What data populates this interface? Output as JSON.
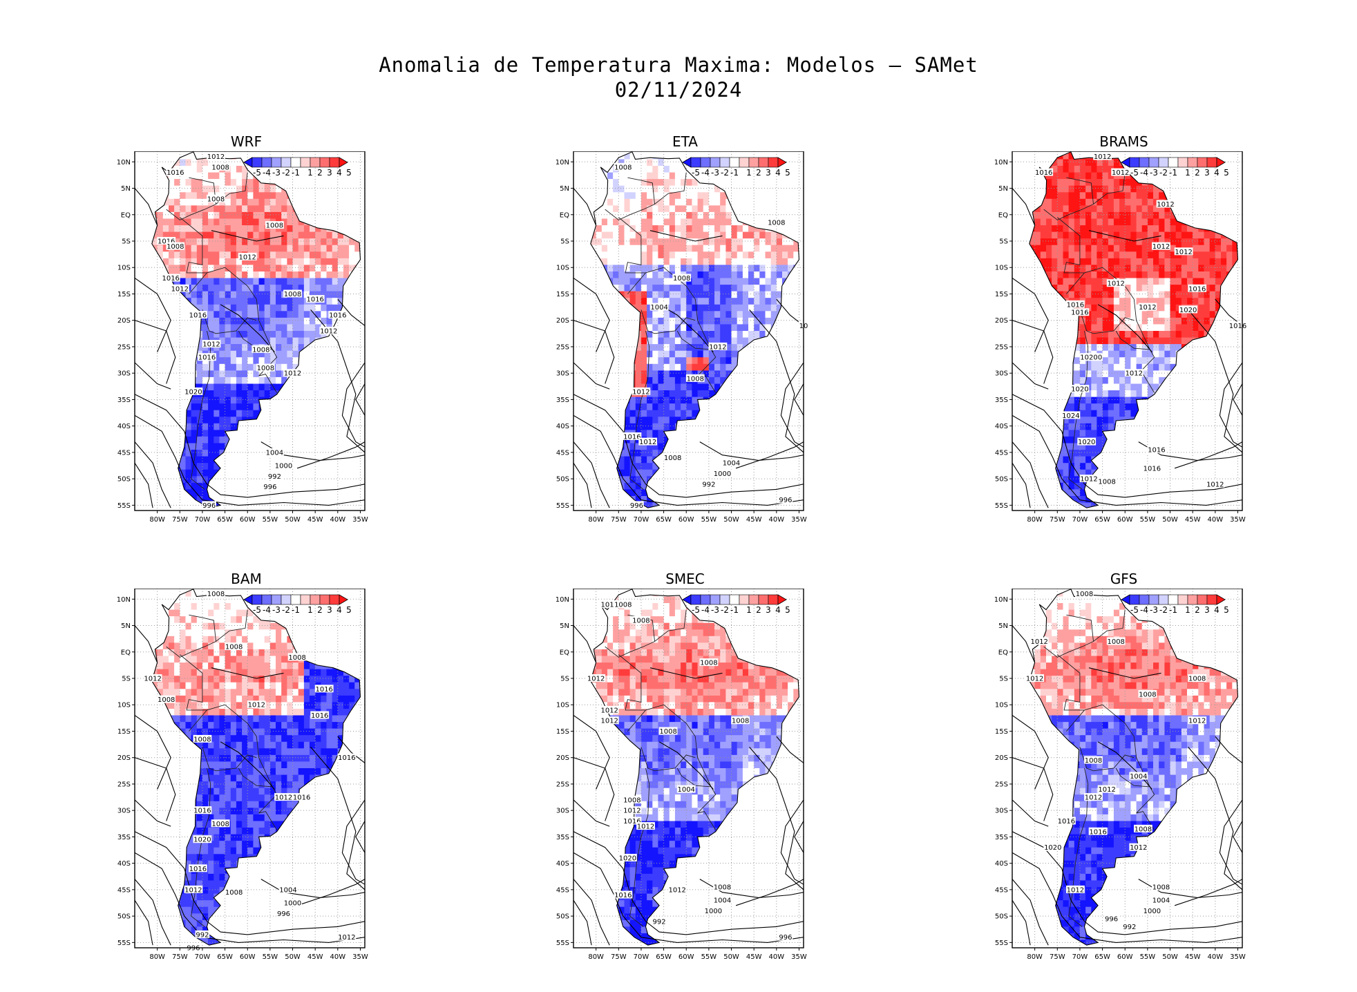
{
  "title": {
    "line1": "Anomalia de Temperatura Maxima: Modelos — SAMet",
    "line2": "02/11/2024"
  },
  "axes": {
    "lat_labels": [
      "10N",
      "5N",
      "EQ",
      "5S",
      "10S",
      "15S",
      "20S",
      "25S",
      "30S",
      "35S",
      "40S",
      "45S",
      "50S",
      "55S"
    ],
    "lon_labels": [
      "80W",
      "75W",
      "70W",
      "65W",
      "60W",
      "55W",
      "50W",
      "45W",
      "40W",
      "35W"
    ],
    "lat_range": [
      -56,
      12
    ],
    "lon_range": [
      -85,
      -34
    ]
  },
  "colorbar": {
    "labels": [
      "-5",
      "-4",
      "-3",
      "-2",
      "-1",
      "1",
      "2",
      "3",
      "4",
      "5"
    ],
    "colors": [
      "#1414ff",
      "#3c3cff",
      "#6e6eff",
      "#a0a0ff",
      "#d2d2ff",
      "#ffffff",
      "#ffd2d2",
      "#ffa0a0",
      "#ff6e6e",
      "#ff3c3c",
      "#ff1414"
    ]
  },
  "panels": [
    {
      "name": "WRF",
      "pattern": "warm-north",
      "isobars": [
        "1012",
        "1008",
        "1016",
        "1008",
        "1008",
        "1016",
        "1008",
        "1012",
        "1016",
        "1012",
        "1008",
        "1016",
        "1016",
        "1012",
        "1016",
        "1008",
        "1012",
        "1016",
        "1020",
        "1012",
        "1008",
        "1004",
        "1000",
        "992",
        "996",
        "996"
      ]
    },
    {
      "name": "ETA",
      "pattern": "mixed",
      "isobars": [
        "1008",
        "1008",
        "1008",
        "1004",
        "1012",
        "1008",
        "1012",
        "1016",
        "1012",
        "1008",
        "1004",
        "1000",
        "992",
        "996",
        "996",
        "10"
      ]
    },
    {
      "name": "BRAMS",
      "pattern": "very-warm",
      "isobars": [
        "1012",
        "1016",
        "1012",
        "1012",
        "1012",
        "1012",
        "1012",
        "1016",
        "1016",
        "1012",
        "1016",
        "1020",
        "1016",
        "1012",
        "1020",
        "1020",
        "1024",
        "1020",
        "1016",
        "1016",
        "1012",
        "1008",
        "1012",
        "1020"
      ]
    },
    {
      "name": "BAM",
      "pattern": "cold-east",
      "isobars": [
        "1008",
        "1008",
        "1008",
        "1012",
        "1016",
        "1008",
        "1012",
        "1016",
        "1008",
        "1016",
        "1012",
        "1016",
        "1016",
        "1008",
        "1020",
        "1016",
        "1012",
        "1008",
        "1004",
        "1000",
        "996",
        "992",
        "996",
        "1012"
      ]
    },
    {
      "name": "SMEC",
      "pattern": "warm-north",
      "isobars": [
        "1012",
        "1008",
        "1008",
        "1008",
        "1012",
        "1008",
        "1012",
        "1008",
        "1012",
        "1004",
        "1008",
        "1012",
        "1016",
        "1012",
        "1020",
        "1016",
        "1012",
        "1008",
        "1004",
        "1000",
        "992",
        "996"
      ]
    },
    {
      "name": "GFS",
      "pattern": "warm-north",
      "isobars": [
        "1008",
        "1012",
        "1008",
        "1012",
        "1008",
        "1008",
        "1012",
        "1008",
        "1004",
        "1012",
        "1012",
        "1016",
        "1008",
        "1012",
        "1020",
        "1012",
        "1016",
        "1008",
        "1004",
        "1000",
        "996",
        "992"
      ]
    }
  ]
}
